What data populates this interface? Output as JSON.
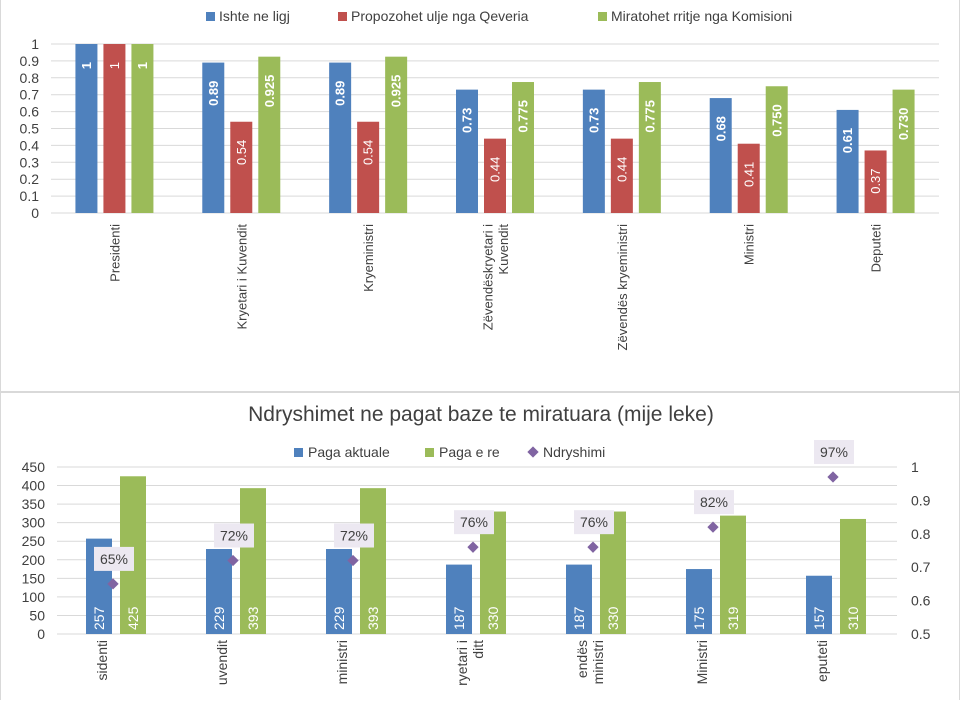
{
  "chart_data": [
    {
      "type": "bar",
      "title": "",
      "categories": [
        "Presidenti",
        "Kryetari i Kuvendit",
        "Kryeministri",
        "Zëvendëskryetari i Kuvendit",
        "Zëvendës kryeministri",
        "Ministri",
        "Deputeti"
      ],
      "series": [
        {
          "name": "Ishte ne ligj",
          "color": "#4f81bd",
          "values": [
            1,
            0.89,
            0.89,
            0.73,
            0.73,
            0.68,
            0.61
          ],
          "labels": [
            "1",
            "0.89",
            "0.89",
            "0.73",
            "0.73",
            "0.68",
            "0.61"
          ]
        },
        {
          "name": "Propozohet ulje nga Qeveria",
          "color": "#c0504d",
          "values": [
            1,
            0.54,
            0.54,
            0.44,
            0.44,
            0.41,
            0.37
          ],
          "labels": [
            "1",
            "0.54",
            "0.54",
            "0.44",
            "0.44",
            "0.41",
            "0.37"
          ]
        },
        {
          "name": "Miratohet rritje nga Komisioni",
          "color": "#9bbb59",
          "values": [
            1,
            0.925,
            0.925,
            0.775,
            0.775,
            0.75,
            0.73
          ],
          "labels": [
            "1",
            "0.925",
            "0.925",
            "0.775",
            "0.775",
            "0.750",
            "0.730"
          ]
        }
      ],
      "yticks": [
        "0",
        "0.1",
        "0.2",
        "0.3",
        "0.4",
        "0.5",
        "0.6",
        "0.7",
        "0.8",
        "0.9",
        "1"
      ],
      "ylim": [
        0,
        1
      ],
      "legend": "top",
      "grid": true
    },
    {
      "type": "bar",
      "title": "Ndryshimet ne pagat baze te miratuara (mije leke)",
      "categories": [
        "Presidenti",
        "Kryetari i Kuvendit",
        "Kryeministri",
        "Zëvendëskryetari i Kuvendit",
        "Zëvendës kryeministri",
        "Ministri",
        "Deputeti"
      ],
      "category_labels_visible": [
        "sidenti",
        "uvendit",
        "ministri",
        "ryetari i|ditt",
        "endës|ministri",
        "Ministri",
        "eputeti"
      ],
      "series": [
        {
          "name": "Paga aktuale",
          "color": "#4f81bd",
          "values": [
            257,
            229,
            229,
            187,
            187,
            175,
            157
          ]
        },
        {
          "name": "Paga e re",
          "color": "#9bbb59",
          "values": [
            425,
            393,
            393,
            330,
            330,
            319,
            310
          ]
        }
      ],
      "line_series": {
        "name": "Ndryshimi",
        "color": "#8064a2",
        "axis": "secondary",
        "values": [
          0.65,
          0.72,
          0.72,
          0.76,
          0.76,
          0.82,
          0.97
        ],
        "labels": [
          "65%",
          "72%",
          "72%",
          "76%",
          "76%",
          "82%",
          "97%"
        ]
      },
      "yticks_left": [
        "0",
        "50",
        "100",
        "150",
        "200",
        "250",
        "300",
        "350",
        "400",
        "450"
      ],
      "yticks_right": [
        "0.5",
        "0.6",
        "0.7",
        "0.8",
        "0.9",
        "1"
      ],
      "ylim": [
        0,
        450
      ],
      "y2lim": [
        0.5,
        1
      ],
      "legend": "top",
      "grid": true
    }
  ]
}
